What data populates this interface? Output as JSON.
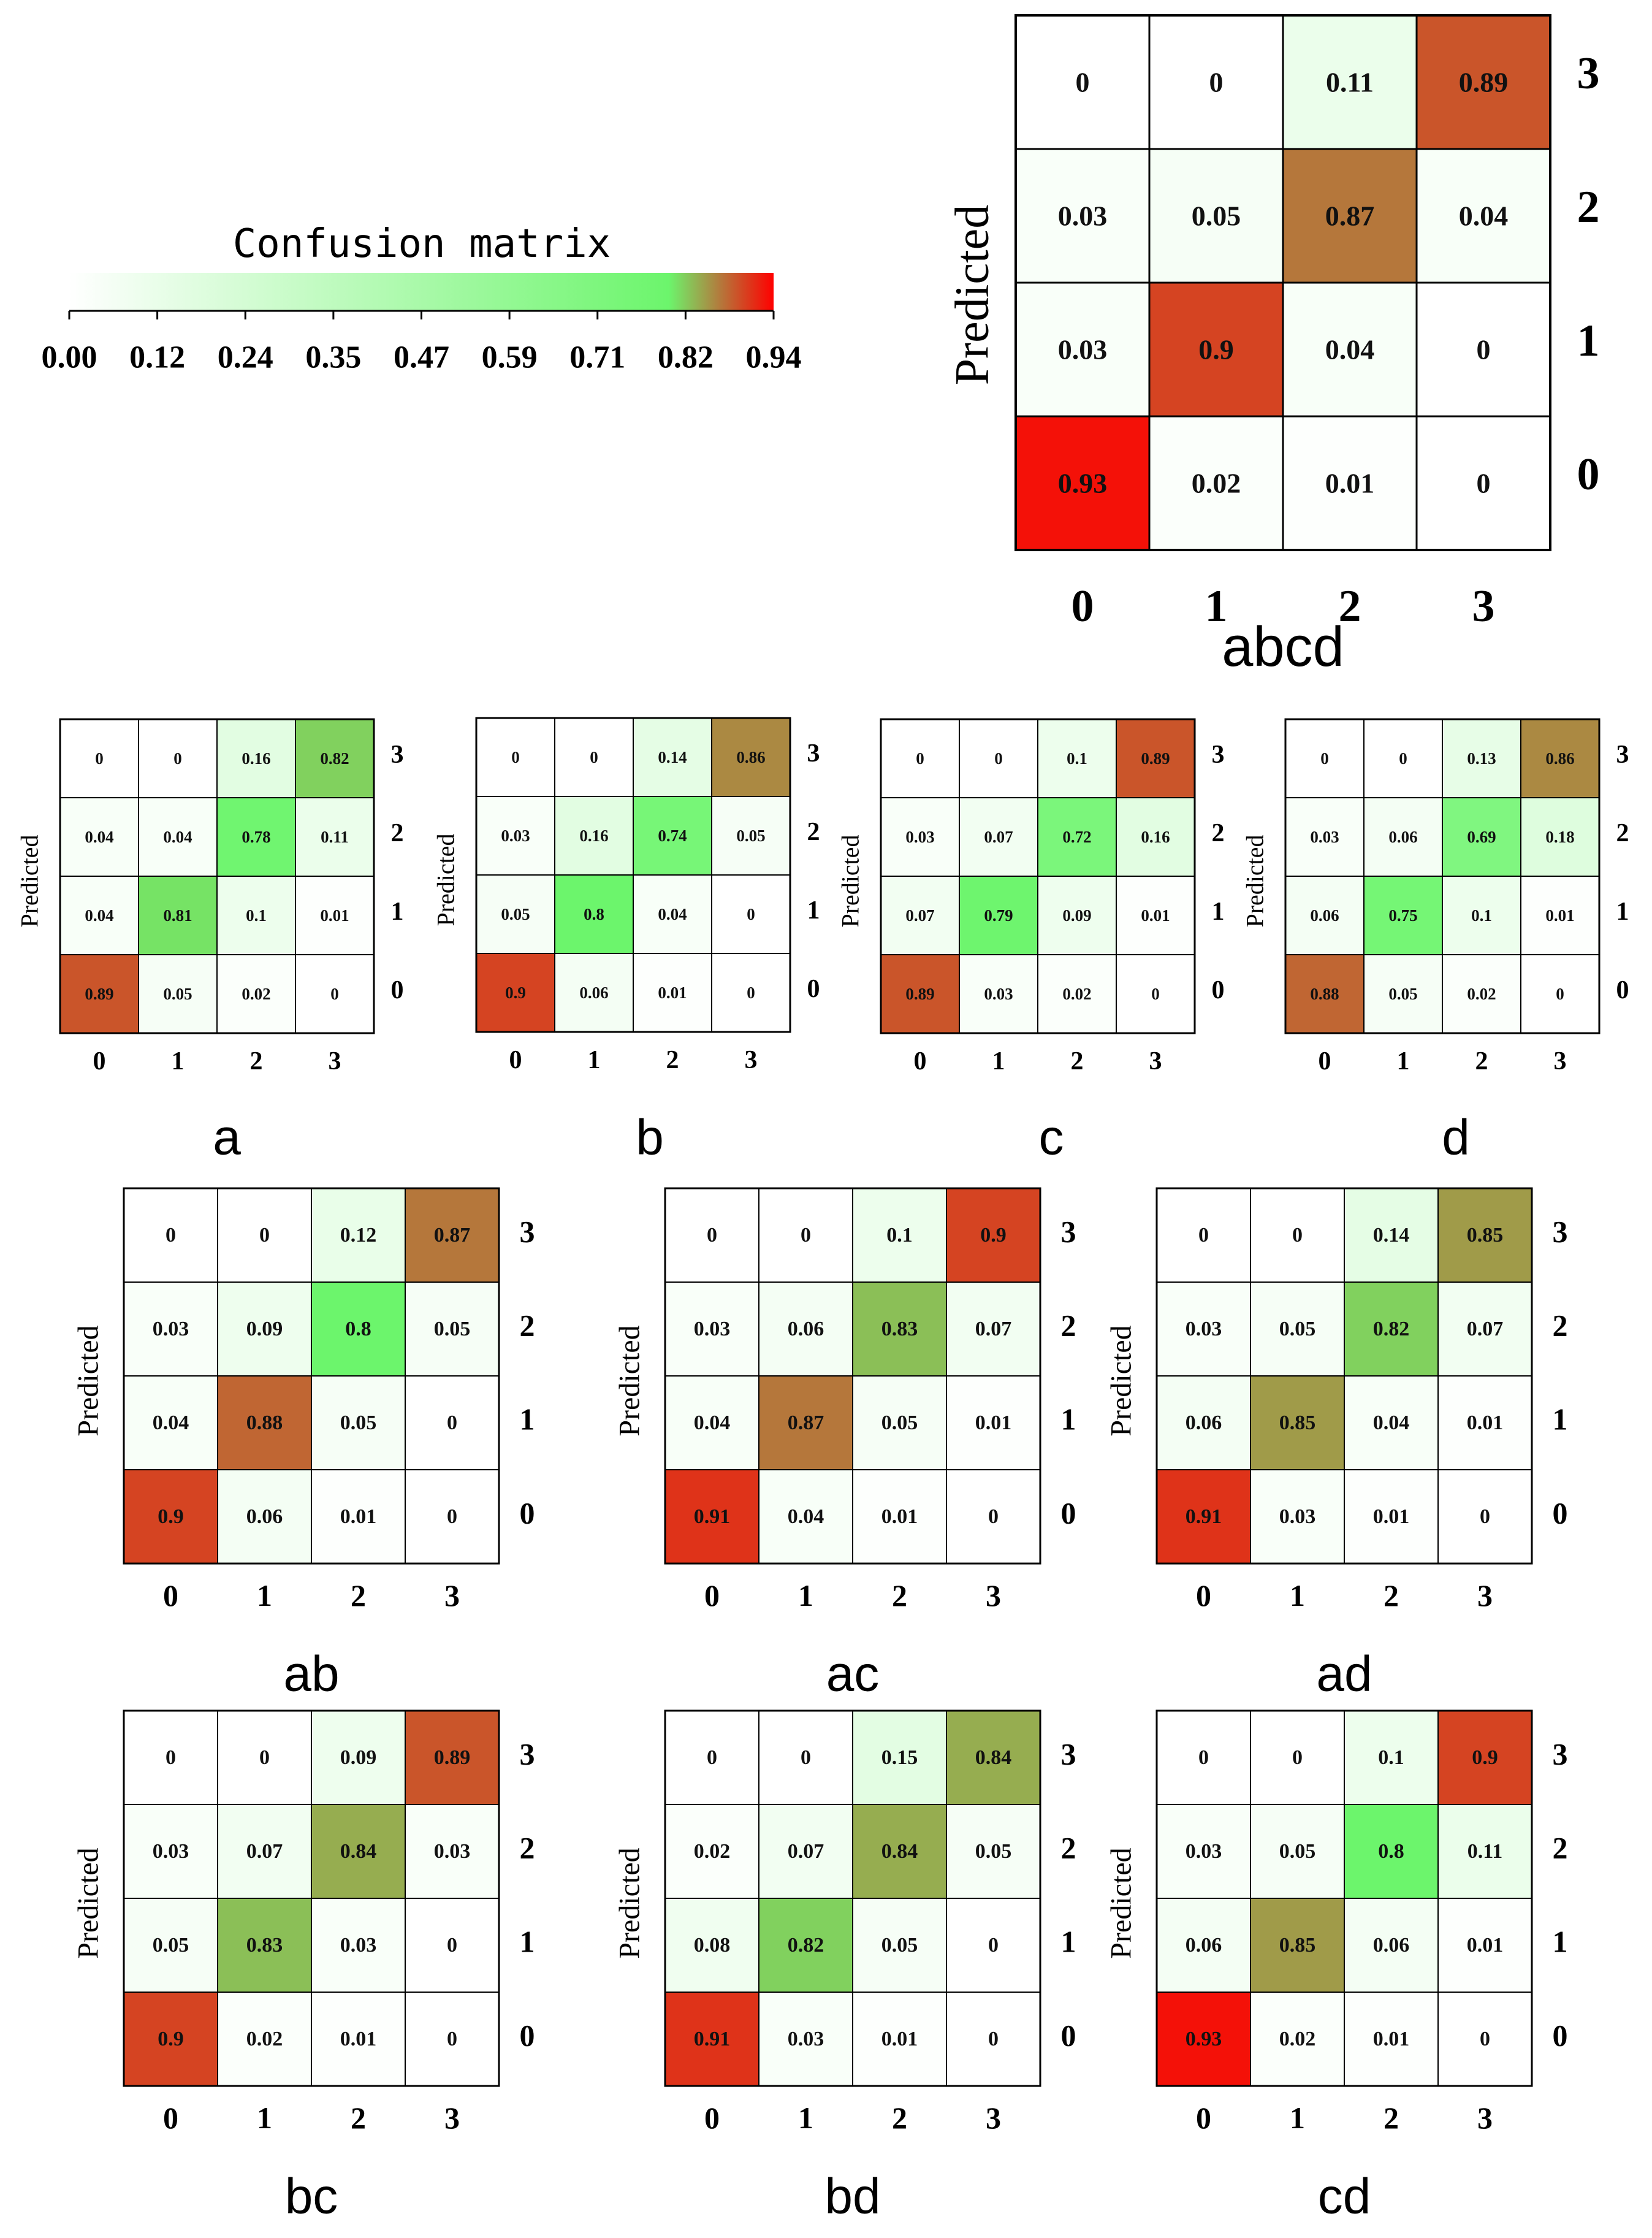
{
  "colorbar": {
    "title": "Confusion matrix",
    "ticks": [
      "0.00",
      "0.12",
      "0.24",
      "0.35",
      "0.47",
      "0.59",
      "0.71",
      "0.82",
      "0.94"
    ],
    "range": [
      0,
      0.94
    ],
    "colors": [
      "#ffffff",
      "#6cf56c",
      "#b5773b",
      "#ff0000"
    ]
  },
  "chart_data": [
    {
      "type": "heatmap",
      "title": "abcd",
      "ylabel": "Predicted",
      "x_ticks": [
        "0",
        "1",
        "2",
        "3"
      ],
      "y_ticks": [
        "3",
        "2",
        "1",
        "0"
      ],
      "cells": [
        [
          "0",
          "0",
          "0.11",
          "0.89"
        ],
        [
          "0.03",
          "0.05",
          "0.87",
          "0.04"
        ],
        [
          "0.03",
          "0.9",
          "0.04",
          "0"
        ],
        [
          "0.93",
          "0.02",
          "0.01",
          "0"
        ]
      ]
    },
    {
      "type": "heatmap",
      "title": "a",
      "ylabel": "Predicted",
      "x_ticks": [
        "0",
        "1",
        "2",
        "3"
      ],
      "y_ticks": [
        "3",
        "2",
        "1",
        "0"
      ],
      "cells": [
        [
          "0",
          "0",
          "0.16",
          "0.82"
        ],
        [
          "0.04",
          "0.04",
          "0.78",
          "0.11"
        ],
        [
          "0.04",
          "0.81",
          "0.1",
          "0.01"
        ],
        [
          "0.89",
          "0.05",
          "0.02",
          "0"
        ]
      ]
    },
    {
      "type": "heatmap",
      "title": "b",
      "ylabel": "Predicted",
      "x_ticks": [
        "0",
        "1",
        "2",
        "3"
      ],
      "y_ticks": [
        "3",
        "2",
        "1",
        "0"
      ],
      "cells": [
        [
          "0",
          "0",
          "0.14",
          "0.86"
        ],
        [
          "0.03",
          "0.16",
          "0.74",
          "0.05"
        ],
        [
          "0.05",
          "0.8",
          "0.04",
          "0"
        ],
        [
          "0.9",
          "0.06",
          "0.01",
          "0"
        ]
      ]
    },
    {
      "type": "heatmap",
      "title": "c",
      "ylabel": "Predicted",
      "x_ticks": [
        "0",
        "1",
        "2",
        "3"
      ],
      "y_ticks": [
        "3",
        "2",
        "1",
        "0"
      ],
      "cells": [
        [
          "0",
          "0",
          "0.1",
          "0.89"
        ],
        [
          "0.03",
          "0.07",
          "0.72",
          "0.16"
        ],
        [
          "0.07",
          "0.79",
          "0.09",
          "0.01"
        ],
        [
          "0.89",
          "0.03",
          "0.02",
          "0"
        ]
      ]
    },
    {
      "type": "heatmap",
      "title": "d",
      "ylabel": "Predicted",
      "x_ticks": [
        "0",
        "1",
        "2",
        "3"
      ],
      "y_ticks": [
        "3",
        "2",
        "1",
        "0"
      ],
      "cells": [
        [
          "0",
          "0",
          "0.13",
          "0.86"
        ],
        [
          "0.03",
          "0.06",
          "0.69",
          "0.18"
        ],
        [
          "0.06",
          "0.75",
          "0.1",
          "0.01"
        ],
        [
          "0.88",
          "0.05",
          "0.02",
          "0"
        ]
      ]
    },
    {
      "type": "heatmap",
      "title": "ab",
      "ylabel": "Predicted",
      "x_ticks": [
        "0",
        "1",
        "2",
        "3"
      ],
      "y_ticks": [
        "3",
        "2",
        "1",
        "0"
      ],
      "cells": [
        [
          "0",
          "0",
          "0.12",
          "0.87"
        ],
        [
          "0.03",
          "0.09",
          "0.8",
          "0.05"
        ],
        [
          "0.04",
          "0.88",
          "0.05",
          "0"
        ],
        [
          "0.9",
          "0.06",
          "0.01",
          "0"
        ]
      ]
    },
    {
      "type": "heatmap",
      "title": "ac",
      "ylabel": "Predicted",
      "x_ticks": [
        "0",
        "1",
        "2",
        "3"
      ],
      "y_ticks": [
        "3",
        "2",
        "1",
        "0"
      ],
      "cells": [
        [
          "0",
          "0",
          "0.1",
          "0.9"
        ],
        [
          "0.03",
          "0.06",
          "0.83",
          "0.07"
        ],
        [
          "0.04",
          "0.87",
          "0.05",
          "0.01"
        ],
        [
          "0.91",
          "0.04",
          "0.01",
          "0"
        ]
      ]
    },
    {
      "type": "heatmap",
      "title": "ad",
      "ylabel": "Predicted",
      "x_ticks": [
        "0",
        "1",
        "2",
        "3"
      ],
      "y_ticks": [
        "3",
        "2",
        "1",
        "0"
      ],
      "cells": [
        [
          "0",
          "0",
          "0.14",
          "0.85"
        ],
        [
          "0.03",
          "0.05",
          "0.82",
          "0.07"
        ],
        [
          "0.06",
          "0.85",
          "0.04",
          "0.01"
        ],
        [
          "0.91",
          "0.03",
          "0.01",
          "0"
        ]
      ]
    },
    {
      "type": "heatmap",
      "title": "bc",
      "ylabel": "Predicted",
      "x_ticks": [
        "0",
        "1",
        "2",
        "3"
      ],
      "y_ticks": [
        "3",
        "2",
        "1",
        "0"
      ],
      "cells": [
        [
          "0",
          "0",
          "0.09",
          "0.89"
        ],
        [
          "0.03",
          "0.07",
          "0.84",
          "0.03"
        ],
        [
          "0.05",
          "0.83",
          "0.03",
          "0"
        ],
        [
          "0.9",
          "0.02",
          "0.01",
          "0"
        ]
      ]
    },
    {
      "type": "heatmap",
      "title": "bd",
      "ylabel": "Predicted",
      "x_ticks": [
        "0",
        "1",
        "2",
        "3"
      ],
      "y_ticks": [
        "3",
        "2",
        "1",
        "0"
      ],
      "cells": [
        [
          "0",
          "0",
          "0.15",
          "0.84"
        ],
        [
          "0.02",
          "0.07",
          "0.84",
          "0.05"
        ],
        [
          "0.08",
          "0.82",
          "0.05",
          "0"
        ],
        [
          "0.91",
          "0.03",
          "0.01",
          "0"
        ]
      ]
    },
    {
      "type": "heatmap",
      "title": "cd",
      "ylabel": "Predicted",
      "x_ticks": [
        "0",
        "1",
        "2",
        "3"
      ],
      "y_ticks": [
        "3",
        "2",
        "1",
        "0"
      ],
      "cells": [
        [
          "0",
          "0",
          "0.1",
          "0.9"
        ],
        [
          "0.03",
          "0.05",
          "0.8",
          "0.11"
        ],
        [
          "0.06",
          "0.85",
          "0.06",
          "0.01"
        ],
        [
          "0.93",
          "0.02",
          "0.01",
          "0"
        ]
      ]
    }
  ]
}
